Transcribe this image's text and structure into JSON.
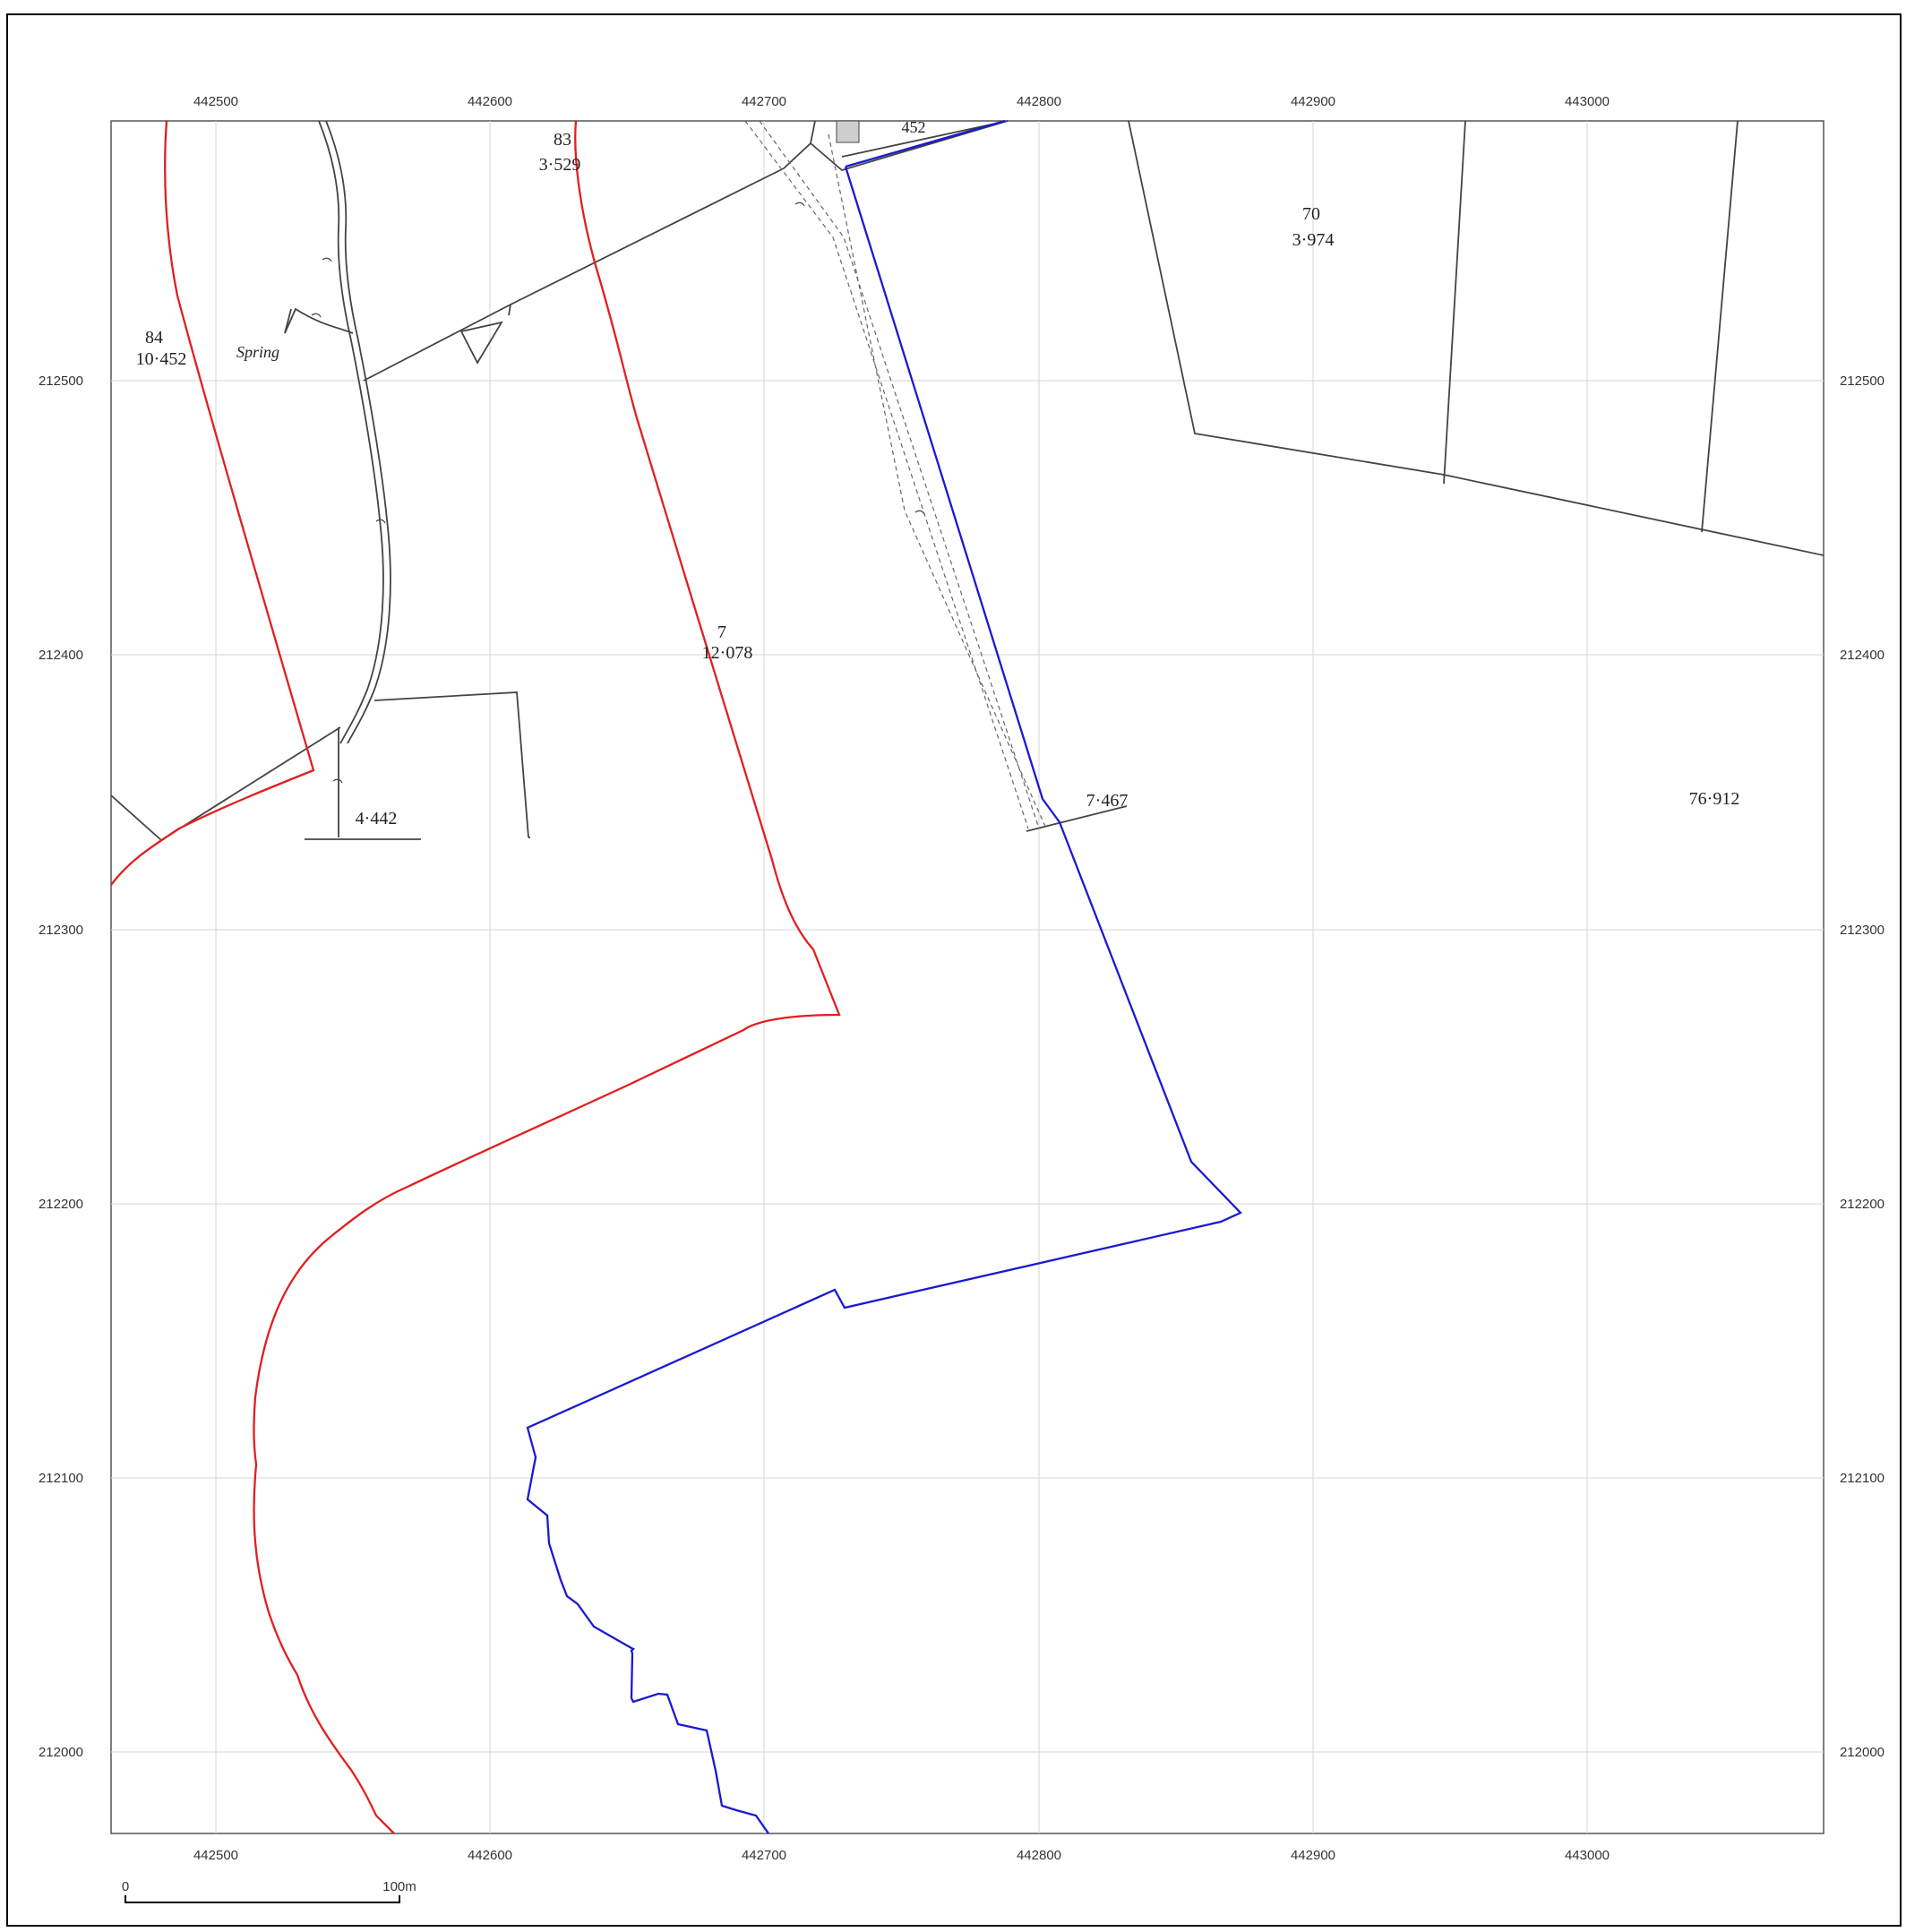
{
  "map": {
    "easting_ticks": [
      "442500",
      "442600",
      "442700",
      "442800",
      "442900",
      "443000"
    ],
    "northing_ticks": [
      "212500",
      "212400",
      "212300",
      "212200",
      "212100",
      "212000"
    ],
    "colors": {
      "red_boundary": "#e02020",
      "blue_boundary": "#1a1ad0",
      "grid": "#d4d4d4",
      "field_lines": "#444444"
    },
    "labels": {
      "parcel_83_num": "83",
      "parcel_83_area": "3·529",
      "parcel_84_num": "84",
      "parcel_84_area": "10·452",
      "spring": "Spring",
      "parcel_70_num": "70",
      "parcel_70_area": "3·974",
      "parcel_7_num": "7",
      "parcel_7_area": "12·078",
      "parcel_7467": "7·467",
      "parcel_76912": "76·912",
      "parcel_4442": "4·442",
      "parcel_452": "452"
    },
    "scale_bar": {
      "start": "0",
      "end": "100m"
    }
  }
}
